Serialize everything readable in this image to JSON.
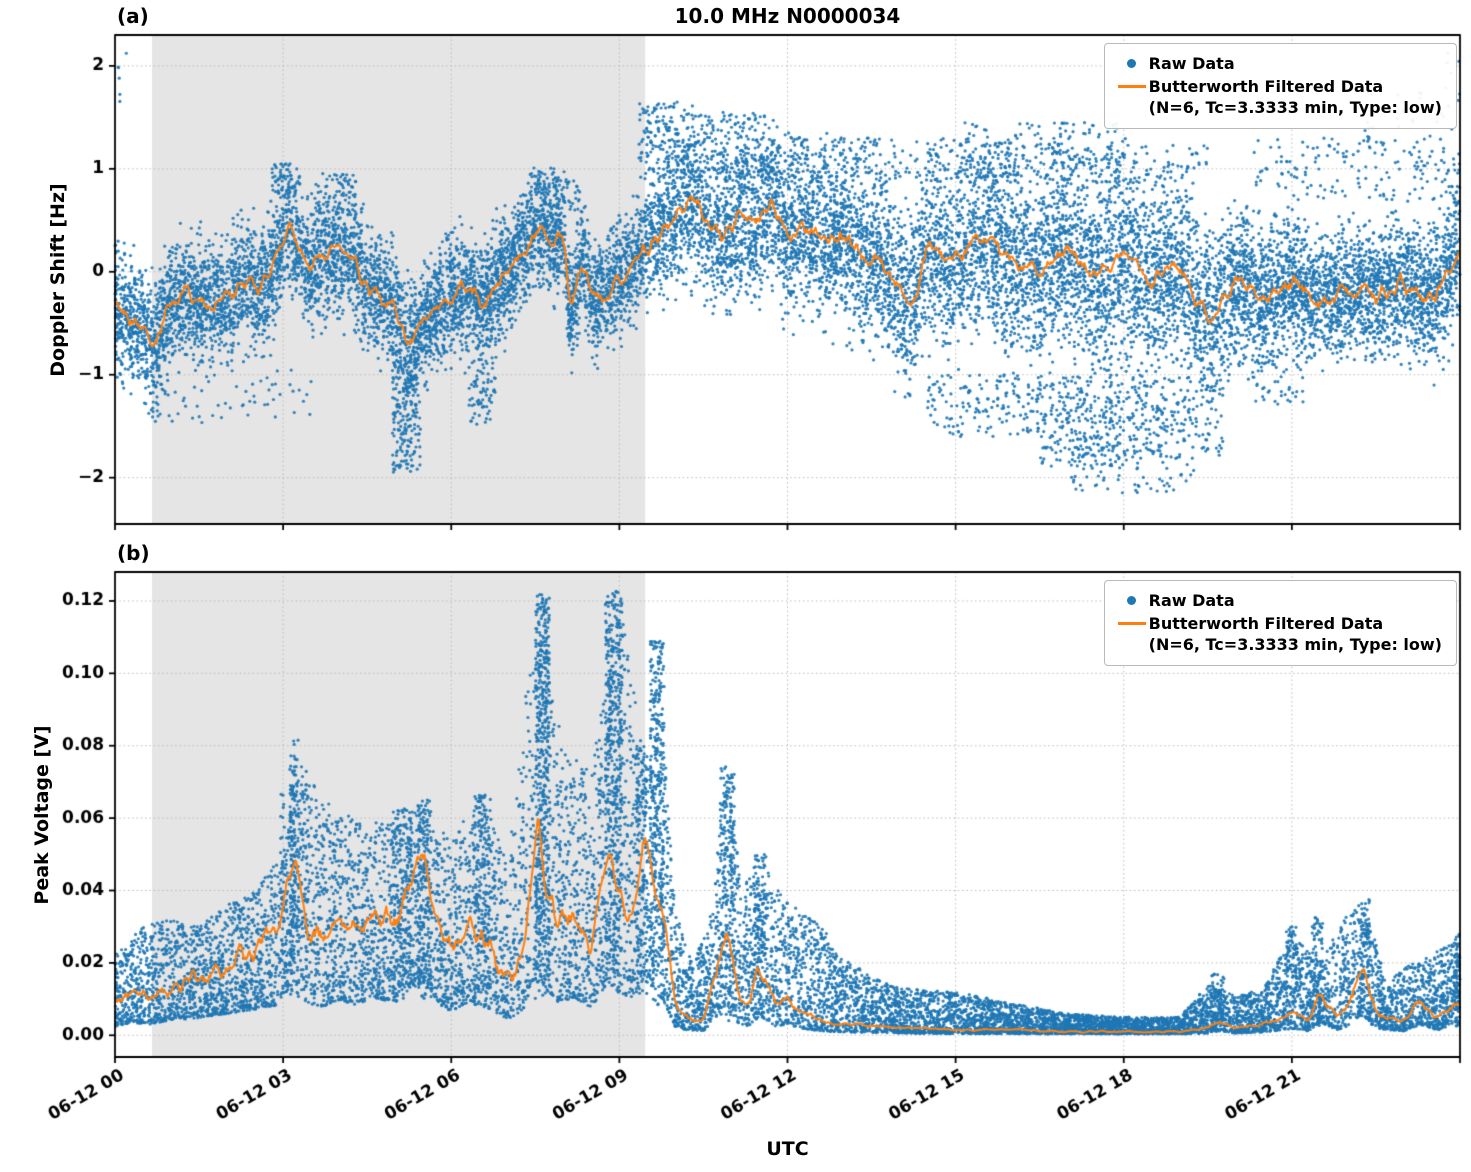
{
  "figure": {
    "title": "10.0 MHz N0000034",
    "xlabel": "UTC"
  },
  "legend": {
    "raw": "Raw Data",
    "filtered": "Butterworth Filtered Data",
    "filtered_params": "(N=6, Tc=3.3333 min, Type: low)"
  },
  "colors": {
    "raw": "#1f77b4",
    "filtered": "#ff7f0e",
    "shade": "#e5e5e5",
    "grid": "#bbbbbb",
    "spine": "#000000",
    "text": "#000000"
  },
  "axes": {
    "xlim": [
      0,
      24
    ],
    "x_ticks": [
      0,
      3,
      6,
      9,
      12,
      15,
      18,
      21,
      24
    ],
    "x_tick_labels": [
      "06-12 00",
      "06-12 03",
      "06-12 06",
      "06-12 09",
      "06-12 12",
      "06-12 15",
      "06-12 18",
      "06-12 21",
      ""
    ],
    "shade_span": [
      0.66,
      9.46
    ]
  },
  "chart_data": [
    {
      "type": "scatter",
      "panel_label": "(a)",
      "ylabel": "Doppler Shift [Hz]",
      "ylim": [
        -2.45,
        2.3
      ],
      "y_ticks": [
        -2,
        -1,
        0,
        1,
        2
      ],
      "y_tick_labels": [
        "−2",
        "−1",
        "0",
        "1",
        "2"
      ],
      "series_names": [
        "Raw Data",
        "Butterworth Filtered Data (N=6, Tc=3.3333 min, Type: low)"
      ],
      "line": {
        "t": [
          0,
          0.2,
          0.5,
          0.7,
          1,
          1.3,
          1.6,
          2,
          2.3,
          2.6,
          3,
          3.1,
          3.4,
          3.7,
          4,
          4.2,
          4.5,
          4.8,
          5,
          5.2,
          5.5,
          5.8,
          6,
          6.3,
          6.6,
          7,
          7.3,
          7.6,
          7.8,
          8,
          8.15,
          8.3,
          8.6,
          9,
          9.3,
          9.6,
          10,
          10.3,
          10.6,
          11,
          11.2,
          11.4,
          11.7,
          12,
          12.3,
          12.7,
          13,
          13.3,
          13.7,
          14,
          14.2,
          14.5,
          15,
          15.4,
          15.8,
          16,
          16.5,
          17,
          17.5,
          18,
          18.5,
          19,
          19.3,
          19.6,
          20,
          20.5,
          21,
          21.5,
          22,
          22.5,
          23,
          23.5,
          23.8,
          24
        ],
        "y": [
          -0.3,
          -0.45,
          -0.55,
          -0.75,
          -0.3,
          -0.2,
          -0.3,
          -0.25,
          -0.1,
          -0.2,
          0.3,
          0.45,
          0.05,
          0.15,
          0.25,
          0.1,
          -0.1,
          -0.3,
          -0.35,
          -0.75,
          -0.5,
          -0.3,
          -0.25,
          -0.15,
          -0.3,
          0.0,
          0.2,
          0.45,
          0.3,
          0.35,
          -0.5,
          0.1,
          -0.3,
          -0.05,
          0.1,
          0.3,
          0.55,
          0.7,
          0.45,
          0.4,
          0.6,
          0.45,
          0.7,
          0.35,
          0.45,
          0.25,
          0.35,
          0.15,
          0.1,
          -0.15,
          -0.4,
          0.25,
          0.1,
          0.35,
          0.2,
          0.1,
          0.0,
          0.2,
          -0.05,
          0.15,
          -0.1,
          0.05,
          -0.3,
          -0.45,
          -0.1,
          -0.25,
          -0.1,
          -0.3,
          -0.15,
          -0.25,
          -0.1,
          -0.3,
          0.0,
          0.3
        ]
      },
      "line_noise": 0.3,
      "line_noise_rel": false,
      "y_clamp_min": null,
      "scatter": {
        "mode": "band",
        "n": 15000,
        "hw_t": [
          0,
          2,
          4,
          6,
          8,
          9.5,
          10,
          12,
          14,
          16,
          18,
          20,
          21,
          22,
          23,
          24
        ],
        "hw": [
          0.38,
          0.38,
          0.4,
          0.38,
          0.35,
          0.33,
          0.45,
          0.5,
          0.52,
          0.58,
          0.62,
          0.5,
          0.42,
          0.4,
          0.42,
          0.45
        ],
        "clusters": [
          [
            0.05,
            0.35,
            1.6,
            2.15,
            6
          ],
          [
            0.5,
            3.5,
            -1.5,
            -0.95,
            60
          ],
          [
            2.8,
            3.3,
            0.75,
            1.05,
            50
          ],
          [
            3.9,
            4.3,
            0.7,
            0.95,
            30
          ],
          [
            4.95,
            5.45,
            -1.95,
            -0.85,
            200
          ],
          [
            6.3,
            6.8,
            -1.5,
            -0.8,
            70
          ],
          [
            7.4,
            7.9,
            0.7,
            1.0,
            40
          ],
          [
            8.0,
            8.3,
            0.6,
            0.9,
            25
          ],
          [
            9.35,
            10.2,
            0.9,
            1.65,
            140
          ],
          [
            10.2,
            11.6,
            0.9,
            1.55,
            160
          ],
          [
            11.6,
            13.0,
            0.85,
            1.35,
            100
          ],
          [
            13.0,
            16.0,
            0.9,
            1.3,
            150
          ],
          [
            15.0,
            18.0,
            0.9,
            1.45,
            150
          ],
          [
            16.0,
            19.5,
            0.85,
            1.25,
            120
          ],
          [
            14.5,
            16.5,
            -1.6,
            -1.0,
            150
          ],
          [
            16.5,
            18.0,
            -1.9,
            -1.0,
            220
          ],
          [
            17.0,
            19.3,
            -2.15,
            -1.2,
            180
          ],
          [
            18.0,
            19.8,
            -1.8,
            -1.0,
            150
          ],
          [
            20.3,
            21.2,
            -1.3,
            -0.85,
            40
          ],
          [
            20.3,
            24.0,
            0.7,
            1.3,
            140
          ],
          [
            22.3,
            24.0,
            0.9,
            1.8,
            50
          ],
          [
            23.7,
            24.0,
            1.9,
            2.15,
            4
          ]
        ]
      }
    },
    {
      "type": "scatter",
      "panel_label": "(b)",
      "ylabel": "Peak Voltage [V]",
      "ylim": [
        -0.006,
        0.128
      ],
      "y_ticks": [
        0,
        0.02,
        0.04,
        0.06,
        0.08,
        0.1,
        0.12
      ],
      "y_tick_labels": [
        "0.00",
        "0.02",
        "0.04",
        "0.06",
        "0.08",
        "0.10",
        "0.12"
      ],
      "series_names": [
        "Raw Data",
        "Butterworth Filtered Data (N=6, Tc=3.3333 min, Type: low)"
      ],
      "line": {
        "t": [
          0,
          0.3,
          0.6,
          1,
          1.5,
          2,
          2.5,
          2.9,
          3.2,
          3.4,
          3.7,
          4,
          4.3,
          4.6,
          5,
          5.2,
          5.5,
          5.8,
          6,
          6.3,
          6.6,
          7,
          7.3,
          7.55,
          7.65,
          7.9,
          8.2,
          8.5,
          8.8,
          8.95,
          9.2,
          9.45,
          9.65,
          9.8,
          10,
          10.2,
          10.5,
          10.7,
          10.9,
          11.1,
          11.3,
          11.5,
          11.8,
          12,
          12.3,
          12.6,
          13,
          13.5,
          14,
          15,
          16,
          17,
          18,
          19,
          19.5,
          19.7,
          20,
          20.5,
          21,
          21.3,
          21.5,
          21.8,
          22,
          22.25,
          22.5,
          23,
          23.3,
          23.6,
          24
        ],
        "y": [
          0.008,
          0.012,
          0.01,
          0.014,
          0.016,
          0.02,
          0.024,
          0.028,
          0.05,
          0.03,
          0.026,
          0.033,
          0.028,
          0.035,
          0.03,
          0.04,
          0.05,
          0.028,
          0.022,
          0.03,
          0.026,
          0.015,
          0.022,
          0.063,
          0.045,
          0.03,
          0.035,
          0.025,
          0.05,
          0.04,
          0.03,
          0.054,
          0.04,
          0.03,
          0.008,
          0.005,
          0.004,
          0.015,
          0.03,
          0.012,
          0.008,
          0.018,
          0.008,
          0.01,
          0.006,
          0.004,
          0.003,
          0.0025,
          0.002,
          0.0015,
          0.0015,
          0.001,
          0.001,
          0.001,
          0.002,
          0.004,
          0.002,
          0.003,
          0.006,
          0.004,
          0.012,
          0.005,
          0.008,
          0.02,
          0.006,
          0.004,
          0.01,
          0.005,
          0.009
        ]
      },
      "line_noise": 0.012,
      "line_noise_rel": true,
      "y_clamp_min": 0.0005,
      "scatter": {
        "mode": "envelope",
        "n": 12000,
        "exp": 1.5,
        "lo_factor": 0.3,
        "lo_min": 0.0004,
        "env_t": [
          0,
          0.5,
          1,
          1.5,
          2,
          2.5,
          3,
          3.2,
          3.5,
          4,
          4.5,
          5,
          5.5,
          6,
          6.5,
          7,
          7.5,
          8,
          8.5,
          9,
          9.5,
          9.7,
          10,
          10.3,
          10.6,
          10.9,
          11.2,
          11.5,
          12,
          12.5,
          13,
          13.5,
          14,
          15,
          16,
          17,
          18,
          19,
          19.5,
          20,
          20.5,
          21,
          21.5,
          22,
          22.3,
          22.7,
          23,
          23.5,
          24
        ],
        "env_hi": [
          0.022,
          0.03,
          0.032,
          0.03,
          0.036,
          0.04,
          0.05,
          0.08,
          0.07,
          0.062,
          0.058,
          0.062,
          0.065,
          0.055,
          0.068,
          0.048,
          0.118,
          0.08,
          0.075,
          0.12,
          0.072,
          0.106,
          0.035,
          0.02,
          0.03,
          0.073,
          0.04,
          0.05,
          0.037,
          0.032,
          0.022,
          0.016,
          0.013,
          0.012,
          0.009,
          0.006,
          0.005,
          0.005,
          0.014,
          0.011,
          0.013,
          0.028,
          0.02,
          0.034,
          0.037,
          0.014,
          0.019,
          0.022,
          0.028
        ],
        "cluster_exp": 0.75,
        "clusters": [
          [
            2.95,
            3.45,
            0.01,
            0.07,
            150
          ],
          [
            3.12,
            3.28,
            0.01,
            0.082,
            120
          ],
          [
            4.9,
            5.3,
            0.01,
            0.06,
            150
          ],
          [
            5.4,
            5.65,
            0.01,
            0.066,
            150
          ],
          [
            6.4,
            6.7,
            0.01,
            0.067,
            150
          ],
          [
            7.5,
            7.75,
            0.01,
            0.122,
            450
          ],
          [
            8.75,
            9.05,
            0.01,
            0.123,
            450
          ],
          [
            9.3,
            9.5,
            0.008,
            0.08,
            150
          ],
          [
            9.55,
            9.8,
            0.008,
            0.109,
            300
          ],
          [
            10.8,
            11.05,
            0.004,
            0.075,
            160
          ],
          [
            11.4,
            11.65,
            0.004,
            0.05,
            120
          ],
          [
            19.55,
            19.8,
            0.001,
            0.017,
            60
          ],
          [
            20.9,
            21.1,
            0.002,
            0.03,
            60
          ],
          [
            21.35,
            21.55,
            0.002,
            0.033,
            80
          ],
          [
            22.2,
            22.4,
            0.002,
            0.038,
            80
          ],
          [
            23.9,
            24.0,
            0.002,
            0.028,
            40
          ]
        ]
      }
    }
  ]
}
